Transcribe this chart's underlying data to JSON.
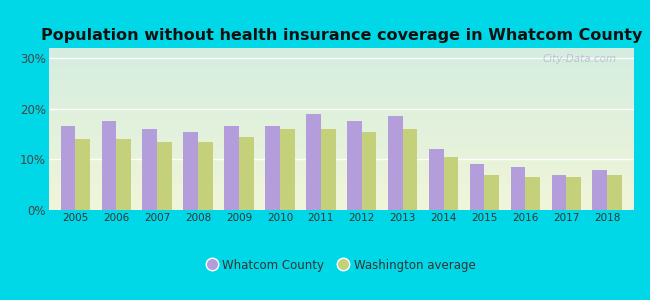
{
  "title": "Population without health insurance coverage in Whatcom County",
  "years": [
    2005,
    2006,
    2007,
    2008,
    2009,
    2010,
    2011,
    2012,
    2013,
    2014,
    2015,
    2016,
    2017,
    2018
  ],
  "whatcom": [
    16.5,
    17.5,
    16.0,
    15.5,
    16.5,
    16.5,
    19.0,
    17.5,
    18.5,
    12.0,
    9.0,
    8.5,
    7.0,
    8.0
  ],
  "washington": [
    14.0,
    14.0,
    13.5,
    13.5,
    14.5,
    16.0,
    16.0,
    15.5,
    16.0,
    10.5,
    7.0,
    6.5,
    6.5,
    7.0
  ],
  "whatcom_color": "#b39ddb",
  "washington_color": "#c5d17a",
  "bg_outer": "#00d8e8",
  "ylabel_ticks": [
    "0%",
    "10%",
    "20%",
    "30%"
  ],
  "yticks": [
    0,
    10,
    20,
    30
  ],
  "ylim": [
    0,
    32
  ],
  "legend_whatcom": "Whatcom County",
  "legend_washington": "Washington average",
  "title_fontsize": 11.5,
  "bar_width": 0.36,
  "watermark": "City-Data.com"
}
